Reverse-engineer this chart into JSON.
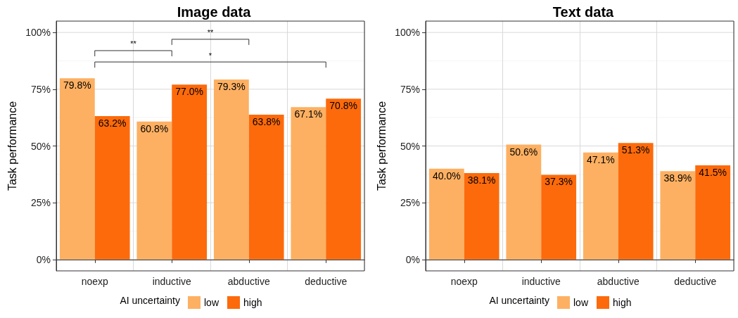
{
  "chart_data": [
    {
      "type": "bar",
      "title": "Image data",
      "ylabel": "Task performance",
      "legend_title": "AI uncertainty",
      "categories": [
        "noexp",
        "inductive",
        "abductive",
        "deductive"
      ],
      "series": [
        {
          "name": "low",
          "color": "#fdb062",
          "values": [
            79.8,
            60.8,
            79.3,
            67.1
          ],
          "value_labels": [
            "79.8%",
            "60.8%",
            "79.3%",
            "67.1%"
          ]
        },
        {
          "name": "high",
          "color": "#fd6a0b",
          "values": [
            63.2,
            77.0,
            63.8,
            70.8
          ],
          "value_labels": [
            "63.2%",
            "77.0%",
            "63.8%",
            "70.8%"
          ]
        }
      ],
      "ylim": [
        -5,
        105
      ],
      "yticks": [
        {
          "value": 0,
          "label": "0%"
        },
        {
          "value": 25,
          "label": "25%"
        },
        {
          "value": 50,
          "label": "50%"
        },
        {
          "value": 75,
          "label": "75%"
        },
        {
          "value": 100,
          "label": "100%"
        }
      ],
      "grid": true,
      "legend": "bottom",
      "annotations": [
        "**",
        "**",
        "*"
      ]
    },
    {
      "type": "bar",
      "title": "Text data",
      "ylabel": "Task performance",
      "legend_title": "AI uncertainty",
      "categories": [
        "noexp",
        "inductive",
        "abductive",
        "deductive"
      ],
      "series": [
        {
          "name": "low",
          "color": "#fdb062",
          "values": [
            40.0,
            50.6,
            47.1,
            38.9
          ],
          "value_labels": [
            "40.0%",
            "50.6%",
            "47.1%",
            "38.9%"
          ]
        },
        {
          "name": "high",
          "color": "#fd6a0b",
          "values": [
            38.1,
            37.3,
            51.3,
            41.5
          ],
          "value_labels": [
            "38.1%",
            "37.3%",
            "51.3%",
            "41.5%"
          ]
        }
      ],
      "ylim": [
        -5,
        105
      ],
      "yticks": [
        {
          "value": 0,
          "label": "0%"
        },
        {
          "value": 25,
          "label": "25%"
        },
        {
          "value": 50,
          "label": "50%"
        },
        {
          "value": 75,
          "label": "75%"
        },
        {
          "value": 100,
          "label": "100%"
        }
      ],
      "grid": true,
      "legend": "bottom"
    }
  ]
}
